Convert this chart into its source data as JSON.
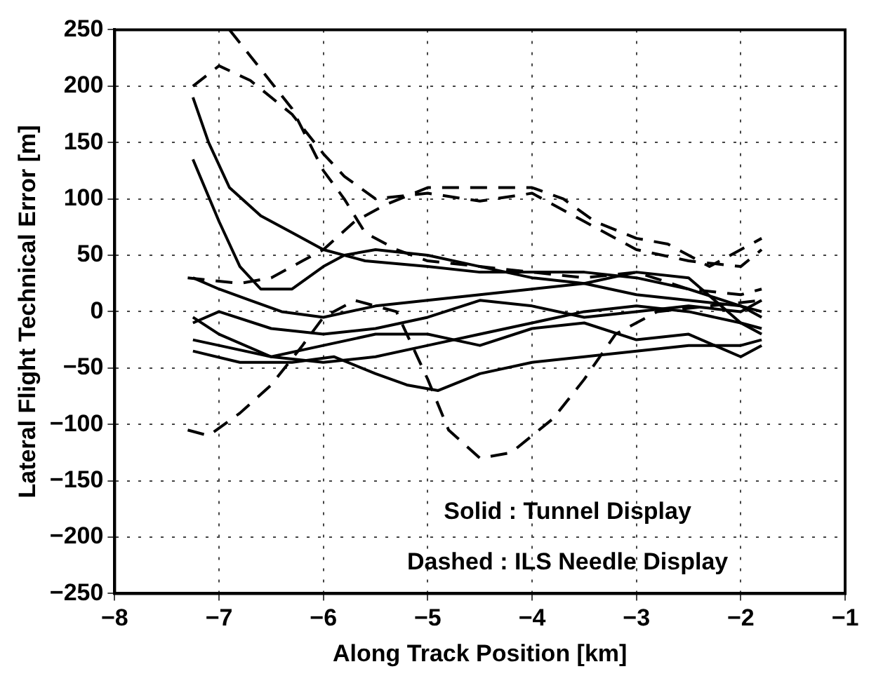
{
  "chart_data": {
    "type": "line",
    "xlabel": "Along Track Position [km]",
    "ylabel": "Lateral Flight Technical Error [m]",
    "xlim": [
      -8,
      -1
    ],
    "xticks": [
      -8,
      -7,
      -6,
      -5,
      -4,
      -3,
      -2,
      -1
    ],
    "ylim": [
      -250,
      250
    ],
    "yticks": [
      -250,
      -200,
      -150,
      -100,
      -50,
      0,
      50,
      100,
      150,
      200,
      250
    ],
    "grid": true,
    "legend": false,
    "marker": "none",
    "annotations": [
      "Solid : Tunnel Display",
      "Dashed : ILS Needle Display"
    ],
    "series": [
      {
        "color": "#000000",
        "line_style": "solid",
        "x": [
          -7.25,
          -7.1,
          -6.9,
          -6.6,
          -6.3,
          -6.0,
          -5.6,
          -5.0,
          -4.5,
          -4.0,
          -3.5,
          -3.0,
          -2.5,
          -2.0,
          -1.8
        ],
        "values": [
          190,
          150,
          110,
          85,
          70,
          55,
          45,
          40,
          35,
          35,
          35,
          30,
          20,
          5,
          0
        ]
      },
      {
        "color": "#000000",
        "line_style": "solid",
        "x": [
          -7.25,
          -7.0,
          -6.8,
          -6.6,
          -6.3,
          -6.0,
          -5.8,
          -5.5,
          -5.0,
          -4.5,
          -4.0,
          -3.5,
          -3.0,
          -2.5,
          -2.0,
          -1.8
        ],
        "values": [
          135,
          80,
          40,
          20,
          20,
          40,
          50,
          55,
          50,
          40,
          30,
          25,
          15,
          10,
          5,
          -5
        ]
      },
      {
        "color": "#000000",
        "line_style": "solid",
        "x": [
          -7.25,
          -7.0,
          -6.7,
          -6.4,
          -6.0,
          -5.5,
          -5.0,
          -4.5,
          -4.0,
          -3.5,
          -3.0,
          -2.5,
          -2.0,
          -1.8
        ],
        "values": [
          30,
          20,
          10,
          0,
          -5,
          5,
          10,
          15,
          20,
          25,
          35,
          30,
          -10,
          -20
        ]
      },
      {
        "color": "#000000",
        "line_style": "solid",
        "x": [
          -7.25,
          -7.0,
          -6.5,
          -6.0,
          -5.5,
          -5.0,
          -4.5,
          -4.0,
          -3.5,
          -3.0,
          -2.5,
          -2.0,
          -1.8
        ],
        "values": [
          -10,
          0,
          -15,
          -20,
          -15,
          -5,
          10,
          5,
          -5,
          0,
          5,
          0,
          10
        ]
      },
      {
        "color": "#000000",
        "line_style": "solid",
        "x": [
          -7.25,
          -7.0,
          -6.5,
          -6.0,
          -5.5,
          -5.0,
          -4.5,
          -4.0,
          -3.5,
          -3.0,
          -2.5,
          -2.0,
          -1.8
        ],
        "values": [
          -25,
          -30,
          -40,
          -45,
          -40,
          -30,
          -20,
          -10,
          0,
          5,
          0,
          -10,
          -15
        ]
      },
      {
        "color": "#000000",
        "line_style": "solid",
        "x": [
          -7.25,
          -6.8,
          -6.3,
          -5.9,
          -5.5,
          -5.2,
          -4.9,
          -4.5,
          -4.0,
          -3.5,
          -3.0,
          -2.5,
          -2.0,
          -1.8
        ],
        "values": [
          -35,
          -45,
          -45,
          -40,
          -55,
          -65,
          -70,
          -55,
          -45,
          -40,
          -35,
          -30,
          -30,
          -25
        ]
      },
      {
        "color": "#000000",
        "line_style": "solid",
        "x": [
          -7.25,
          -7.0,
          -6.5,
          -6.0,
          -5.5,
          -5.0,
          -4.5,
          -4.0,
          -3.5,
          -3.0,
          -2.5,
          -2.0,
          -1.8
        ],
        "values": [
          -5,
          -20,
          -40,
          -30,
          -20,
          -20,
          -30,
          -15,
          -10,
          -25,
          -20,
          -40,
          -30
        ]
      },
      {
        "color": "#000000",
        "line_style": "dashed",
        "x": [
          -7.25,
          -7.0,
          -6.7,
          -6.3,
          -6.0,
          -5.8,
          -5.5,
          -5.0,
          -4.5,
          -4.0,
          -3.5,
          -3.0,
          -2.5,
          -2.0,
          -1.8
        ],
        "values": [
          200,
          218,
          205,
          175,
          140,
          120,
          100,
          105,
          98,
          105,
          80,
          55,
          45,
          40,
          55
        ]
      },
      {
        "color": "#000000",
        "line_style": "dashed",
        "x": [
          -6.9,
          -6.6,
          -6.3,
          -6.0,
          -5.8,
          -5.6,
          -5.3,
          -5.0,
          -4.5,
          -4.0,
          -3.5,
          -3.0,
          -2.5,
          -2.0,
          -1.8
        ],
        "values": [
          250,
          215,
          180,
          125,
          100,
          70,
          55,
          45,
          40,
          35,
          30,
          35,
          20,
          15,
          20
        ]
      },
      {
        "color": "#000000",
        "line_style": "dashed",
        "x": [
          -7.3,
          -7.1,
          -6.8,
          -6.5,
          -6.2,
          -6.0,
          -5.7,
          -5.3,
          -5.0,
          -4.8,
          -4.5,
          -4.2,
          -3.8,
          -3.5,
          -3.2,
          -2.8,
          -2.3,
          -1.8
        ],
        "values": [
          -105,
          -110,
          -90,
          -65,
          -30,
          -5,
          10,
          0,
          -60,
          -105,
          -130,
          -125,
          -95,
          -60,
          -20,
          0,
          5,
          10
        ]
      },
      {
        "color": "#000000",
        "line_style": "dashed",
        "x": [
          -7.3,
          -6.8,
          -6.5,
          -6.2,
          -6.0,
          -5.7,
          -5.4,
          -5.0,
          -4.5,
          -4.0,
          -3.7,
          -3.4,
          -3.0,
          -2.7,
          -2.3,
          -2.0,
          -1.8
        ],
        "values": [
          30,
          25,
          30,
          45,
          55,
          80,
          95,
          110,
          110,
          110,
          100,
          80,
          65,
          60,
          40,
          55,
          65
        ]
      }
    ]
  }
}
